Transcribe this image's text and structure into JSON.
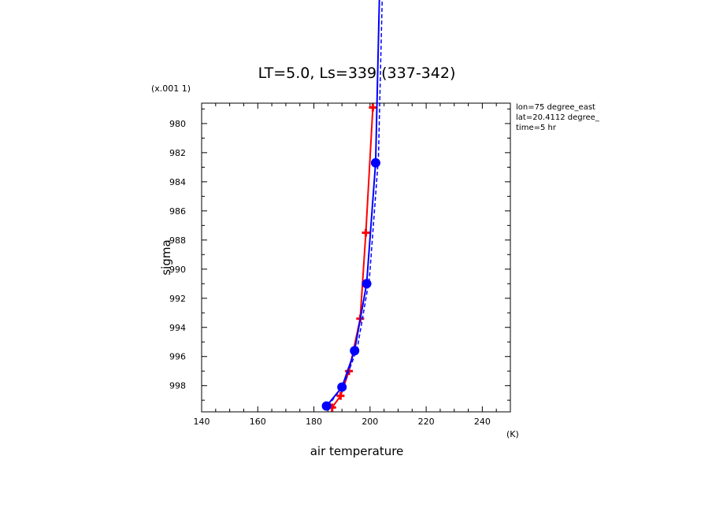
{
  "chart_data": {
    "type": "line",
    "title": "LT=5.0, Ls=339 (337-342)",
    "xlabel": "air temperature",
    "ylabel": "sigma",
    "x_units": "(K)",
    "y_scale_note": "(x.001 1)",
    "xlim": [
      140,
      250
    ],
    "ylim": [
      999.8,
      978.6
    ],
    "x_ticks": [
      140,
      160,
      180,
      200,
      220,
      240
    ],
    "y_ticks": [
      980,
      982,
      984,
      986,
      988,
      990,
      992,
      994,
      996,
      998
    ],
    "x_tick_labels": [
      "140",
      "160",
      "180",
      "200",
      "220",
      "240"
    ],
    "y_tick_labels": [
      "980",
      "982",
      "984",
      "986",
      "988",
      "990",
      "992",
      "994",
      "996",
      "998"
    ],
    "annotations": [
      "lon=75 degree_east",
      "lat=20.4112 degree_",
      "time=5 hr"
    ],
    "series": [
      {
        "color": "#ff0000",
        "style": "solid",
        "marker": "cross",
        "x": [
          186.5,
          189.5,
          192.5,
          196.5,
          198.5,
          201.0
        ],
        "y": [
          999.5,
          998.7,
          997.0,
          993.4,
          987.5,
          978.9
        ]
      },
      {
        "color": "#0000ff",
        "style": "solid",
        "marker": "circle",
        "x": [
          184.5,
          190.0,
          194.5,
          198.8,
          202.0,
          203.5
        ],
        "y": [
          999.4,
          998.1,
          995.6,
          991.0,
          982.7,
          970.0
        ]
      },
      {
        "color": "#0000ff",
        "style": "dashed",
        "marker": "none",
        "x": [
          185.0,
          190.5,
          195.5,
          199.8,
          203.0,
          204.5
        ],
        "y": [
          999.4,
          998.0,
          995.4,
          990.6,
          982.3,
          970.0
        ]
      }
    ]
  }
}
